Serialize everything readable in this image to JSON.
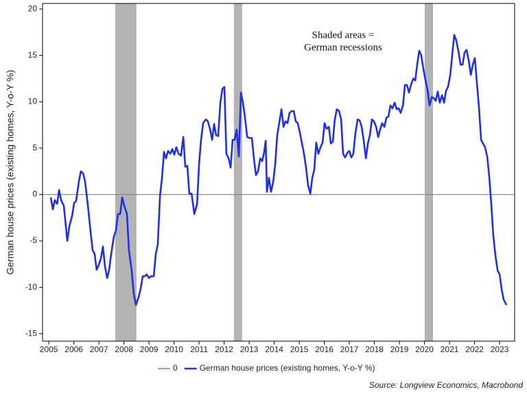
{
  "chart_data": {
    "type": "line",
    "y_label": "German house prices (existing homes, Y-o-Y %)",
    "source": "Source: Longview Economics, Macrobond",
    "annotation": [
      "Shaded areas =",
      "German recessions"
    ],
    "recessions": [
      [
        2007.65,
        2008.5
      ],
      [
        2012.39,
        2012.72
      ],
      [
        2020.01,
        2020.34
      ]
    ],
    "recession_color": "#b3b3b3",
    "hline": {
      "name": "0",
      "value": 0,
      "color": "#e8595c"
    },
    "legend": "bottom",
    "xlim": [
      2004.75,
      2023.6
    ],
    "xticks": [
      2005,
      2006,
      2007,
      2008,
      2009,
      2010,
      2011,
      2012,
      2013,
      2014,
      2015,
      2016,
      2017,
      2018,
      2019,
      2020,
      2021,
      2022,
      2023
    ],
    "ylim": [
      -15.8,
      20.6
    ],
    "yticks": [
      -15,
      -10,
      -5,
      0,
      5,
      10,
      15,
      20
    ],
    "x": [
      2005.08,
      2005.16,
      2005.24,
      2005.33,
      2005.41,
      2005.49,
      2005.6,
      2005.74,
      2005.82,
      2005.93,
      2006.01,
      2006.09,
      2006.2,
      2006.28,
      2006.37,
      2006.45,
      2006.56,
      2006.67,
      2006.75,
      2006.83,
      2006.91,
      2006.99,
      2007.08,
      2007.16,
      2007.24,
      2007.33,
      2007.41,
      2007.49,
      2007.6,
      2007.68,
      2007.76,
      2007.85,
      2007.93,
      2008.01,
      2008.12,
      2008.2,
      2008.31,
      2008.39,
      2008.48,
      2008.59,
      2008.67,
      2008.75,
      2008.83,
      2008.91,
      2009.0,
      2009.08,
      2009.19,
      2009.27,
      2009.35,
      2009.44,
      2009.52,
      2009.6,
      2009.68,
      2009.76,
      2009.85,
      2009.93,
      2010.01,
      2010.09,
      2010.18,
      2010.28,
      2010.37,
      2010.45,
      2010.53,
      2010.61,
      2010.7,
      2010.81,
      2010.92,
      2011.0,
      2011.08,
      2011.16,
      2011.27,
      2011.35,
      2011.44,
      2011.52,
      2011.6,
      2011.68,
      2011.76,
      2011.85,
      2011.93,
      2012.01,
      2012.09,
      2012.18,
      2012.26,
      2012.34,
      2012.42,
      2012.5,
      2012.59,
      2012.67,
      2012.75,
      2012.83,
      2012.92,
      2013.02,
      2013.11,
      2013.19,
      2013.27,
      2013.35,
      2013.44,
      2013.52,
      2013.6,
      2013.66,
      2013.71,
      2013.79,
      2013.87,
      2013.96,
      2014.04,
      2014.12,
      2014.2,
      2014.29,
      2014.37,
      2014.45,
      2014.53,
      2014.61,
      2014.7,
      2014.78,
      2014.86,
      2014.94,
      2015.03,
      2015.11,
      2015.19,
      2015.27,
      2015.35,
      2015.44,
      2015.52,
      2015.6,
      2015.68,
      2015.76,
      2015.85,
      2015.93,
      2016.01,
      2016.09,
      2016.18,
      2016.26,
      2016.34,
      2016.42,
      2016.5,
      2016.59,
      2016.67,
      2016.75,
      2016.83,
      2016.92,
      2017.0,
      2017.08,
      2017.16,
      2017.24,
      2017.33,
      2017.41,
      2017.49,
      2017.57,
      2017.66,
      2017.74,
      2017.82,
      2017.9,
      2017.98,
      2018.07,
      2018.15,
      2018.23,
      2018.31,
      2018.4,
      2018.48,
      2018.56,
      2018.64,
      2018.72,
      2018.81,
      2018.89,
      2018.97,
      2019.05,
      2019.14,
      2019.22,
      2019.3,
      2019.38,
      2019.46,
      2019.55,
      2019.63,
      2019.71,
      2019.79,
      2019.87,
      2019.96,
      2020.04,
      2020.12,
      2020.2,
      2020.29,
      2020.37,
      2020.45,
      2020.53,
      2020.61,
      2020.7,
      2020.78,
      2020.86,
      2020.94,
      2021.03,
      2021.11,
      2021.19,
      2021.27,
      2021.35,
      2021.44,
      2021.52,
      2021.6,
      2021.68,
      2021.77,
      2021.85,
      2021.93,
      2022.01,
      2022.09,
      2022.18,
      2022.26,
      2022.34,
      2022.42,
      2022.51,
      2022.59,
      2022.67,
      2022.75,
      2022.83,
      2022.92,
      2023.0,
      2023.08,
      2023.16,
      2023.27
    ],
    "series": [
      {
        "name": "German house prices (existing homes, Y-o-Y %)",
        "color": "#1f2fe6",
        "values": [
          -0.3,
          -1.6,
          -0.6,
          -1.0,
          0.5,
          -0.6,
          -1.2,
          -5.0,
          -3.4,
          -2.3,
          -0.9,
          -0.7,
          1.4,
          2.5,
          2.3,
          1.4,
          -1.2,
          -4.1,
          -6.0,
          -6.4,
          -8.1,
          -7.6,
          -6.9,
          -5.6,
          -7.7,
          -9.0,
          -8.1,
          -6.4,
          -4.5,
          -3.9,
          -2.1,
          -2.1,
          -0.3,
          -1.2,
          -2.1,
          -6.0,
          -8.2,
          -10.7,
          -11.9,
          -11.0,
          -10.1,
          -8.8,
          -8.8,
          -8.6,
          -9.0,
          -8.8,
          -8.8,
          -6.4,
          -5.4,
          -0.1,
          1.8,
          4.6,
          3.9,
          4.7,
          4.4,
          4.9,
          4.3,
          5.1,
          4.4,
          4.2,
          6.2,
          3.0,
          3.1,
          0.1,
          0.1,
          -2.1,
          -1.0,
          3.3,
          5.9,
          7.7,
          8.1,
          7.9,
          7.0,
          5.9,
          7.6,
          6.4,
          6.3,
          9.9,
          11.4,
          11.6,
          4.4,
          3.9,
          2.9,
          5.9,
          5.9,
          7.0,
          4.1,
          11.0,
          9.9,
          8.4,
          6.2,
          6.1,
          6.1,
          3.9,
          2.1,
          2.5,
          3.9,
          3.6,
          4.6,
          5.8,
          0.3,
          1.8,
          0.3,
          1.4,
          3.3,
          6.4,
          7.7,
          9.2,
          7.3,
          7.9,
          7.7,
          8.8,
          9.0,
          9.0,
          7.9,
          7.7,
          6.6,
          5.5,
          4.4,
          2.9,
          1.0,
          0.1,
          1.8,
          2.7,
          5.6,
          4.4,
          5.1,
          5.6,
          7.7,
          7.1,
          7.3,
          5.5,
          5.7,
          8.1,
          9.2,
          9.0,
          8.1,
          4.4,
          4.0,
          4.5,
          4.7,
          4.0,
          4.4,
          6.6,
          8.1,
          8.0,
          7.3,
          5.9,
          3.9,
          5.5,
          6.4,
          8.1,
          7.9,
          7.3,
          6.2,
          7.0,
          7.7,
          7.3,
          8.3,
          8.4,
          9.6,
          9.3,
          9.9,
          9.2,
          9.3,
          8.8,
          9.6,
          11.8,
          11.8,
          11.0,
          11.8,
          12.5,
          12.3,
          14.0,
          15.5,
          15.0,
          13.5,
          12.3,
          11.3,
          9.6,
          10.5,
          10.4,
          10.1,
          11.1,
          9.9,
          10.7,
          9.9,
          11.2,
          11.6,
          12.9,
          15.1,
          17.2,
          16.6,
          15.5,
          14.0,
          14.0,
          15.3,
          15.6,
          14.4,
          12.9,
          14.0,
          14.7,
          12.1,
          9.2,
          5.9,
          5.5,
          5.1,
          4.0,
          1.8,
          -1.2,
          -4.5,
          -6.5,
          -8.2,
          -8.6,
          -10.2,
          -11.3,
          -11.9
        ]
      }
    ]
  }
}
